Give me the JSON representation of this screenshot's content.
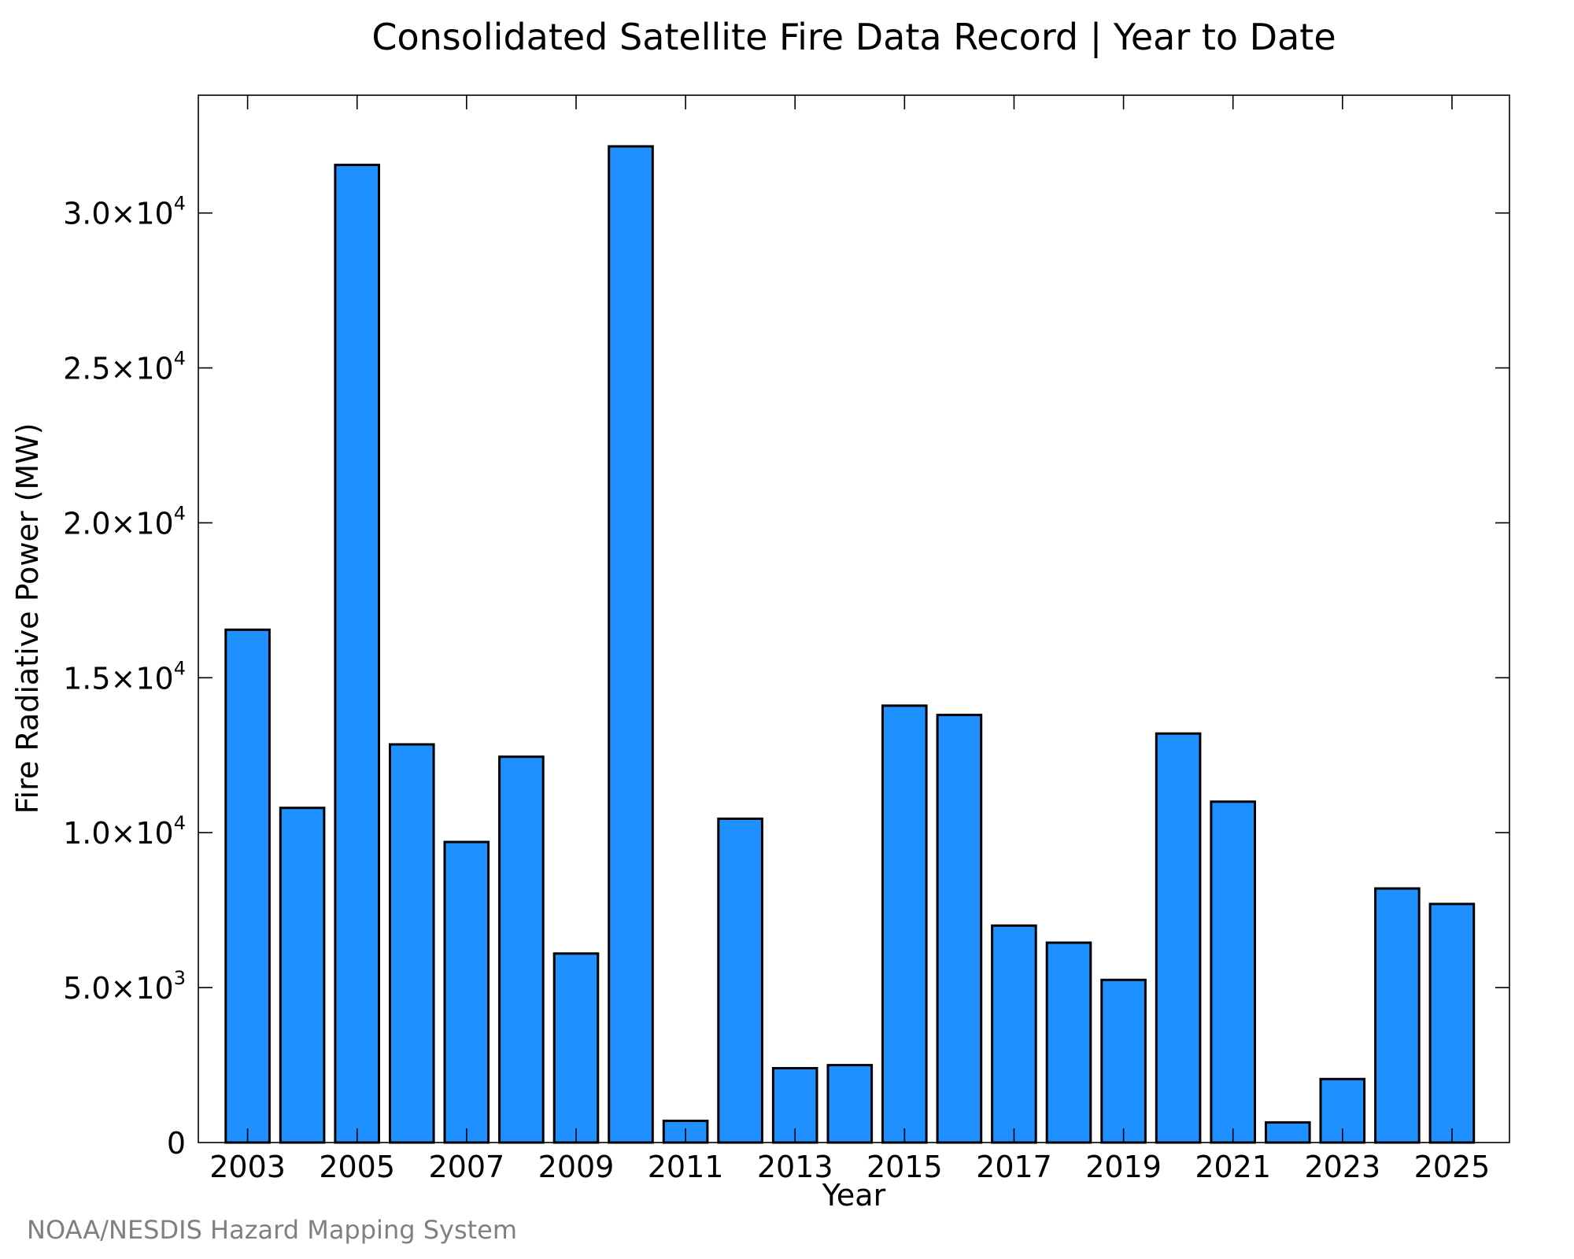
{
  "chart_data": {
    "type": "bar",
    "title": "Consolidated Satellite Fire Data Record | Year to Date",
    "xlabel": "Year",
    "ylabel": "Fire Radiative Power (MW)",
    "categories": [
      "2003",
      "2004",
      "2005",
      "2006",
      "2007",
      "2008",
      "2009",
      "2010",
      "2011",
      "2012",
      "2013",
      "2014",
      "2015",
      "2016",
      "2017",
      "2018",
      "2019",
      "2020",
      "2021",
      "2022",
      "2023",
      "2024",
      "2025"
    ],
    "x_tick_labels": [
      "2003",
      "2005",
      "2007",
      "2009",
      "2011",
      "2013",
      "2015",
      "2017",
      "2019",
      "2021",
      "2023",
      "2025"
    ],
    "values": [
      16550,
      10800,
      31550,
      12850,
      9700,
      12450,
      6100,
      32150,
      700,
      10450,
      2400,
      2500,
      14100,
      13800,
      7000,
      6450,
      5250,
      13200,
      11000,
      650,
      2050,
      8200,
      7700
    ],
    "ylim": [
      0,
      33800
    ],
    "xlim": [
      2002.1,
      2026.05
    ],
    "y_ticks": [
      {
        "value": 0,
        "mantissa": "0",
        "exponent": ""
      },
      {
        "value": 5000,
        "mantissa": "5.0×10",
        "exponent": "3"
      },
      {
        "value": 10000,
        "mantissa": "1.0×10",
        "exponent": "4"
      },
      {
        "value": 15000,
        "mantissa": "1.5×10",
        "exponent": "4"
      },
      {
        "value": 20000,
        "mantissa": "2.0×10",
        "exponent": "4"
      },
      {
        "value": 25000,
        "mantissa": "2.5×10",
        "exponent": "4"
      },
      {
        "value": 30000,
        "mantissa": "3.0×10",
        "exponent": "4"
      }
    ],
    "bar_color": "#1e90ff",
    "grid": false,
    "legend": "none"
  },
  "footer": {
    "credit": "NOAA/NESDIS Hazard Mapping System"
  }
}
